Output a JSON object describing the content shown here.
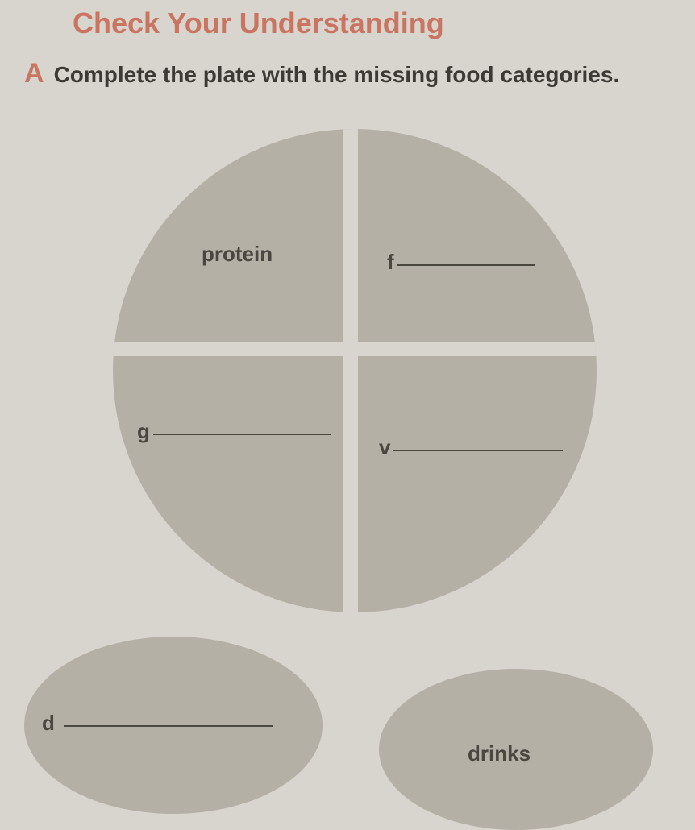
{
  "header": {
    "title": "Check Your Understanding"
  },
  "exercise": {
    "letter": "A",
    "instruction": "Complete the plate with the missing food categories."
  },
  "plate": {
    "protein_label": "protein",
    "f_prefix": "f",
    "g_prefix": "g",
    "v_prefix": "v"
  },
  "ovals": {
    "d_prefix": "d",
    "drinks_label": "drinks"
  },
  "colors": {
    "background": "#d8d5ce",
    "accent": "#c97562",
    "shape_fill": "#b5b0a6",
    "text": "#4a4640"
  }
}
